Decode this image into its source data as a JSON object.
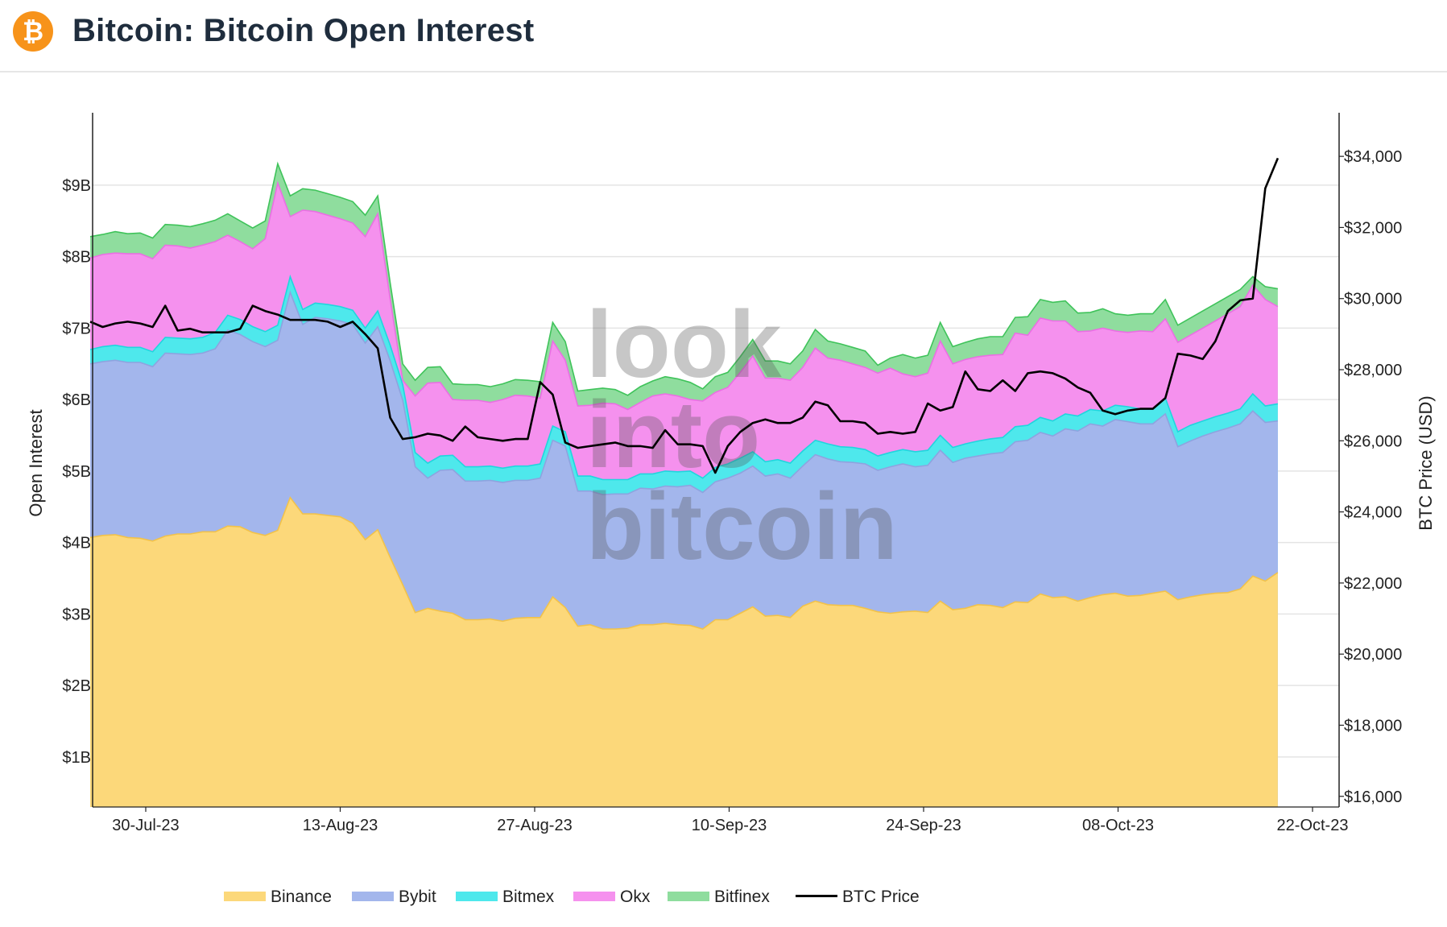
{
  "header": {
    "title": "Bitcoin: Bitcoin Open Interest",
    "logo_glyph": "₿",
    "logo_icon": "bitcoin-logo-icon"
  },
  "watermark": {
    "line1": "look",
    "line2": "into",
    "line3": "bitcoin"
  },
  "chart_data": {
    "type": "area",
    "title": "Bitcoin: Bitcoin Open Interest",
    "ylabel": "Open Interest",
    "y2label": "BTC Price (USD)",
    "ylim": [
      0.3,
      9.9
    ],
    "y2lim": [
      15700,
      35000
    ],
    "x_start": "2023-07-26",
    "x_ticks": [
      "30-Jul-23",
      "13-Aug-23",
      "27-Aug-23",
      "10-Sep-23",
      "24-Sep-23",
      "08-Oct-23",
      "22-Oct-23"
    ],
    "x_tick_dates": [
      "2023-07-30",
      "2023-08-13",
      "2023-08-27",
      "2023-09-10",
      "2023-09-24",
      "2023-10-08",
      "2023-10-22"
    ],
    "y_ticks": [
      "$1B",
      "$2B",
      "$3B",
      "$4B",
      "$5B",
      "$6B",
      "$7B",
      "$8B",
      "$9B"
    ],
    "y_tick_values": [
      1,
      2,
      3,
      4,
      5,
      6,
      7,
      8,
      9
    ],
    "y2_ticks": [
      "$16,000",
      "$18,000",
      "$20,000",
      "$22,000",
      "$24,000",
      "$26,000",
      "$28,000",
      "$30,000",
      "$32,000",
      "$34,000"
    ],
    "y2_tick_values": [
      16000,
      18000,
      20000,
      22000,
      24000,
      26000,
      28000,
      30000,
      32000,
      34000
    ],
    "legend_position": "bottom",
    "grid": true,
    "stack_colors": {
      "Binance": "#fcd87a",
      "Bybit": "#a3b6ec",
      "Bitmex": "#4ee8ec",
      "Okx": "#f591ee",
      "Bitfinex": "#8fdd9e"
    },
    "price_color": "#000000",
    "totals": {
      "Binance": [
        4.07,
        4.1,
        4.11,
        4.07,
        4.06,
        4.02,
        4.09,
        4.12,
        4.12,
        4.15,
        4.15,
        4.23,
        4.22,
        4.14,
        4.1,
        4.17,
        4.63,
        4.4,
        4.4,
        4.38,
        4.36,
        4.27,
        4.04,
        4.18,
        3.79,
        3.41,
        3.02,
        3.08,
        3.04,
        3.01,
        2.92,
        2.92,
        2.93,
        2.9,
        2.94,
        2.95,
        2.95,
        3.24,
        3.09,
        2.83,
        2.85,
        2.79,
        2.79,
        2.8,
        2.85,
        2.85,
        2.87,
        2.85,
        2.84,
        2.79,
        2.92,
        2.92,
        3.01,
        3.1,
        2.97,
        2.98,
        2.95,
        3.11,
        3.18,
        3.13,
        3.12,
        3.12,
        3.08,
        3.03,
        3.01,
        3.03,
        3.04,
        3.02,
        3.18,
        3.06,
        3.08,
        3.13,
        3.12,
        3.09,
        3.17,
        3.16,
        3.28,
        3.23,
        3.24,
        3.18,
        3.23,
        3.27,
        3.29,
        3.25,
        3.26,
        3.29,
        3.32,
        3.2,
        3.24,
        3.27,
        3.29,
        3.3,
        3.35,
        3.53,
        3.46,
        3.58
      ],
      "Bybit": [
        6.5,
        6.53,
        6.55,
        6.52,
        6.52,
        6.46,
        6.65,
        6.64,
        6.63,
        6.65,
        6.71,
        6.97,
        6.91,
        6.81,
        6.74,
        6.83,
        7.5,
        7.05,
        7.15,
        7.13,
        7.1,
        7.05,
        6.79,
        7.02,
        6.54,
        5.99,
        5.06,
        4.9,
        5.01,
        5.02,
        4.86,
        4.86,
        4.87,
        4.84,
        4.87,
        4.87,
        4.9,
        5.43,
        5.35,
        4.72,
        4.72,
        4.67,
        4.68,
        4.68,
        4.76,
        4.75,
        4.79,
        4.78,
        4.8,
        4.7,
        4.85,
        4.9,
        4.97,
        5.07,
        4.93,
        4.96,
        4.9,
        5.07,
        5.23,
        5.17,
        5.13,
        5.12,
        5.1,
        5.01,
        5.06,
        5.1,
        5.06,
        5.08,
        5.29,
        5.12,
        5.18,
        5.21,
        5.24,
        5.26,
        5.41,
        5.43,
        5.54,
        5.49,
        5.59,
        5.56,
        5.66,
        5.63,
        5.72,
        5.69,
        5.66,
        5.66,
        5.8,
        5.34,
        5.42,
        5.49,
        5.55,
        5.6,
        5.66,
        5.84,
        5.68,
        5.7
      ],
      "Bitmex": [
        6.7,
        6.74,
        6.76,
        6.73,
        6.73,
        6.67,
        6.87,
        6.86,
        6.85,
        6.87,
        6.94,
        7.18,
        7.12,
        7.02,
        6.95,
        7.04,
        7.72,
        7.26,
        7.35,
        7.33,
        7.3,
        7.25,
        7.0,
        7.24,
        6.76,
        6.21,
        5.26,
        5.11,
        5.21,
        5.22,
        5.06,
        5.06,
        5.07,
        5.04,
        5.07,
        5.07,
        5.1,
        5.63,
        5.55,
        4.93,
        4.93,
        4.88,
        4.88,
        4.88,
        4.96,
        4.96,
        5.0,
        4.99,
        5.0,
        4.9,
        5.05,
        5.1,
        5.18,
        5.27,
        5.13,
        5.16,
        5.11,
        5.28,
        5.43,
        5.38,
        5.34,
        5.33,
        5.3,
        5.21,
        5.26,
        5.3,
        5.27,
        5.29,
        5.5,
        5.33,
        5.38,
        5.42,
        5.45,
        5.47,
        5.62,
        5.64,
        5.75,
        5.7,
        5.8,
        5.77,
        5.86,
        5.84,
        5.92,
        5.9,
        5.87,
        5.87,
        6.02,
        5.55,
        5.64,
        5.7,
        5.76,
        5.81,
        5.87,
        6.08,
        5.91,
        5.94
      ],
      "Okx": [
        7.98,
        8.03,
        8.05,
        8.04,
        8.04,
        7.97,
        8.16,
        8.15,
        8.12,
        8.16,
        8.21,
        8.3,
        8.21,
        8.11,
        8.25,
        9.03,
        8.56,
        8.65,
        8.63,
        8.58,
        8.53,
        8.47,
        8.28,
        8.6,
        7.4,
        6.27,
        6.05,
        6.23,
        6.24,
        6.0,
        5.99,
        5.99,
        5.96,
        6.0,
        6.06,
        6.05,
        6.02,
        6.82,
        6.55,
        5.91,
        5.92,
        5.95,
        5.94,
        5.86,
        5.96,
        6.05,
        6.08,
        6.05,
        6.0,
        5.98,
        6.1,
        6.17,
        6.38,
        6.61,
        6.3,
        6.3,
        6.27,
        6.45,
        6.72,
        6.58,
        6.55,
        6.5,
        6.45,
        6.37,
        6.44,
        6.36,
        6.32,
        6.37,
        6.82,
        6.5,
        6.56,
        6.6,
        6.62,
        6.63,
        6.93,
        6.9,
        7.14,
        7.1,
        7.1,
        6.95,
        6.96,
        7.0,
        6.96,
        6.94,
        6.96,
        6.95,
        7.13,
        6.8,
        6.9,
        7.0,
        7.1,
        7.2,
        7.3,
        7.6,
        7.4,
        7.3
      ],
      "Bitfinex": [
        8.28,
        8.31,
        8.35,
        8.32,
        8.33,
        8.26,
        8.45,
        8.44,
        8.42,
        8.46,
        8.51,
        8.6,
        8.5,
        8.4,
        8.5,
        9.3,
        8.85,
        8.95,
        8.93,
        8.88,
        8.83,
        8.77,
        8.58,
        8.85,
        7.63,
        6.5,
        6.27,
        6.45,
        6.46,
        6.22,
        6.21,
        6.21,
        6.18,
        6.22,
        6.28,
        6.27,
        6.25,
        7.08,
        6.81,
        6.12,
        6.14,
        6.16,
        6.14,
        6.06,
        6.18,
        6.26,
        6.32,
        6.29,
        6.24,
        6.15,
        6.32,
        6.38,
        6.6,
        6.84,
        6.54,
        6.54,
        6.5,
        6.68,
        6.98,
        6.82,
        6.78,
        6.73,
        6.68,
        6.48,
        6.58,
        6.63,
        6.58,
        6.62,
        7.08,
        6.74,
        6.8,
        6.85,
        6.88,
        6.88,
        7.15,
        7.16,
        7.4,
        7.36,
        7.38,
        7.21,
        7.22,
        7.27,
        7.2,
        7.18,
        7.2,
        7.2,
        7.4,
        7.04,
        7.14,
        7.24,
        7.34,
        7.44,
        7.54,
        7.72,
        7.58,
        7.55
      ]
    },
    "btc_price": [
      29350,
      29200,
      29300,
      29350,
      29300,
      29200,
      29800,
      29100,
      29150,
      29050,
      29050,
      29050,
      29150,
      29800,
      29650,
      29550,
      29400,
      29400,
      29400,
      29350,
      29200,
      29350,
      29000,
      28600,
      26650,
      26050,
      26100,
      26200,
      26150,
      26000,
      26400,
      26100,
      26050,
      26000,
      26050,
      26050,
      27650,
      27300,
      25950,
      25800,
      25850,
      25900,
      25950,
      25850,
      25850,
      25800,
      26300,
      25900,
      25900,
      25850,
      25100,
      25850,
      26250,
      26500,
      26600,
      26500,
      26500,
      26650,
      27100,
      27000,
      26550,
      26550,
      26500,
      26200,
      26250,
      26200,
      26250,
      27050,
      26850,
      26950,
      27950,
      27450,
      27400,
      27700,
      27400,
      27900,
      27950,
      27900,
      27750,
      27500,
      27350,
      26850,
      26750,
      26850,
      26900,
      26900,
      27200,
      28450,
      28400,
      28300,
      28800,
      29650,
      29950,
      30000,
      33100,
      33950
    ],
    "legend": [
      "Binance",
      "Bybit",
      "Bitmex",
      "Okx",
      "Bitfinex",
      "BTC Price"
    ]
  }
}
